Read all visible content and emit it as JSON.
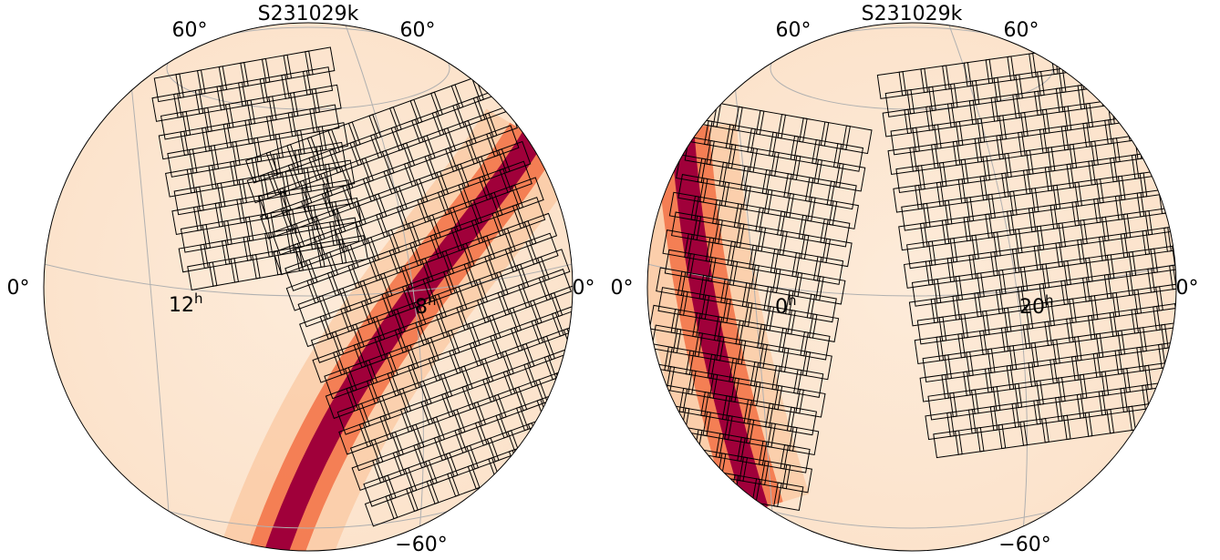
{
  "panels": [
    {
      "title": "S231029k",
      "lat_top_left": "60°",
      "lat_top_right": "60°",
      "lat_mid_left": "0°",
      "lat_mid_right": "0°",
      "ra_labels": [
        {
          "number": "12",
          "unit": "h"
        },
        {
          "number": "8",
          "unit": "h"
        }
      ],
      "lat_bottom": "−60°"
    },
    {
      "title": "S231029k",
      "lat_top_left": "60°",
      "lat_top_right": "60°",
      "lat_mid_left": "0°",
      "lat_mid_right": "0°",
      "ra_labels": [
        {
          "number": "0",
          "unit": "h"
        },
        {
          "number": "20",
          "unit": "h"
        }
      ],
      "lat_bottom": "−60°"
    }
  ]
}
